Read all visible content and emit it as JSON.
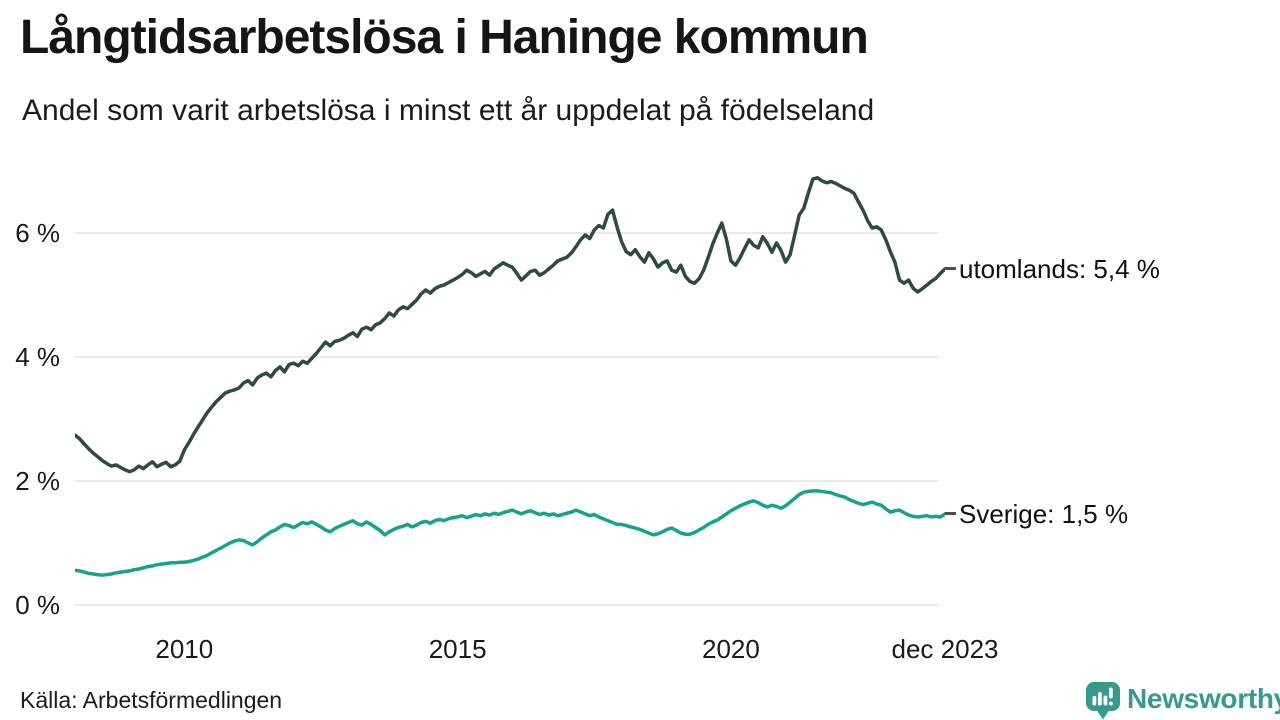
{
  "header": {
    "title": "Långtidsarbetslösa i Haninge kommun",
    "subtitle": "Andel som varit arbetslösa i minst ett år uppdelat på födelseland"
  },
  "footer": {
    "source": "Källa: Arbetsförmedlingen",
    "brand": "Newsworthy"
  },
  "colors": {
    "utomlands_line": "#2d4a44",
    "sverige_line": "#17a28e",
    "grid": "#e4e4e4",
    "label_dash": "#4d4d4d",
    "brand_teal": "#38998c",
    "text": "#1a1a1a"
  },
  "chart_data": {
    "type": "line",
    "title": "Långtidsarbetslösa i Haninge kommun",
    "subtitle": "Andel som varit arbetslösa i minst ett år uppdelat på födelseland",
    "unit": "%",
    "grid": true,
    "legend_position": "right-end-labels",
    "x_range": [
      2008.0,
      2023.9167
    ],
    "x_frequency": "monthly",
    "x_ticks": [
      {
        "year": 2010,
        "label": "2010"
      },
      {
        "year": 2015,
        "label": "2015"
      },
      {
        "year": 2020,
        "label": "2020"
      },
      {
        "year": 2023.9167,
        "label": "dec 2023"
      }
    ],
    "ylim": [
      0,
      7.2
    ],
    "y_ticks": [
      0,
      2,
      4,
      6
    ],
    "y_tick_suffix": " %",
    "series": [
      {
        "name": "utomlands",
        "label": "utomlands: 5,4 %",
        "last_value_label": "5,4 %",
        "color": "#2d4a44",
        "values": [
          2.74,
          2.68,
          2.6,
          2.52,
          2.45,
          2.39,
          2.33,
          2.28,
          2.24,
          2.26,
          2.22,
          2.18,
          2.15,
          2.18,
          2.24,
          2.2,
          2.26,
          2.31,
          2.23,
          2.27,
          2.3,
          2.23,
          2.26,
          2.32,
          2.5,
          2.62,
          2.75,
          2.87,
          2.98,
          3.1,
          3.19,
          3.28,
          3.35,
          3.42,
          3.45,
          3.47,
          3.5,
          3.58,
          3.62,
          3.55,
          3.66,
          3.71,
          3.74,
          3.68,
          3.78,
          3.84,
          3.76,
          3.88,
          3.9,
          3.86,
          3.93,
          3.9,
          3.98,
          4.06,
          4.15,
          4.24,
          4.18,
          4.25,
          4.27,
          4.3,
          4.35,
          4.39,
          4.33,
          4.45,
          4.48,
          4.44,
          4.52,
          4.55,
          4.62,
          4.71,
          4.66,
          4.76,
          4.81,
          4.78,
          4.85,
          4.92,
          5.02,
          5.08,
          5.03,
          5.1,
          5.14,
          5.16,
          5.2,
          5.24,
          5.28,
          5.33,
          5.4,
          5.36,
          5.3,
          5.34,
          5.38,
          5.32,
          5.42,
          5.47,
          5.52,
          5.48,
          5.45,
          5.35,
          5.24,
          5.31,
          5.38,
          5.4,
          5.32,
          5.36,
          5.42,
          5.48,
          5.55,
          5.58,
          5.61,
          5.68,
          5.78,
          5.89,
          5.97,
          5.91,
          6.05,
          6.12,
          6.08,
          6.3,
          6.37,
          6.1,
          5.86,
          5.7,
          5.65,
          5.73,
          5.62,
          5.53,
          5.68,
          5.58,
          5.45,
          5.52,
          5.55,
          5.4,
          5.37,
          5.48,
          5.3,
          5.22,
          5.19,
          5.26,
          5.4,
          5.6,
          5.82,
          6.0,
          6.16,
          5.9,
          5.55,
          5.48,
          5.6,
          5.75,
          5.89,
          5.8,
          5.76,
          5.94,
          5.83,
          5.69,
          5.84,
          5.72,
          5.53,
          5.65,
          5.97,
          6.29,
          6.4,
          6.65,
          6.87,
          6.89,
          6.84,
          6.81,
          6.83,
          6.8,
          6.76,
          6.72,
          6.69,
          6.64,
          6.5,
          6.37,
          6.2,
          6.08,
          6.1,
          6.05,
          5.89,
          5.7,
          5.53,
          5.24,
          5.19,
          5.24,
          5.11,
          5.05,
          5.1,
          5.16,
          5.22,
          5.27,
          5.35,
          5.42
        ]
      },
      {
        "name": "Sverige",
        "label": "Sverige: 1,5 %",
        "last_value_label": "1,5 %",
        "color": "#17a28e",
        "values": [
          0.56,
          0.55,
          0.53,
          0.51,
          0.5,
          0.49,
          0.48,
          0.49,
          0.5,
          0.52,
          0.53,
          0.54,
          0.55,
          0.57,
          0.58,
          0.6,
          0.62,
          0.63,
          0.65,
          0.66,
          0.67,
          0.68,
          0.68,
          0.69,
          0.69,
          0.7,
          0.72,
          0.74,
          0.77,
          0.8,
          0.84,
          0.88,
          0.92,
          0.96,
          1.0,
          1.03,
          1.05,
          1.04,
          1.0,
          0.97,
          1.02,
          1.08,
          1.13,
          1.18,
          1.21,
          1.26,
          1.3,
          1.28,
          1.25,
          1.29,
          1.33,
          1.31,
          1.34,
          1.3,
          1.26,
          1.21,
          1.18,
          1.23,
          1.27,
          1.3,
          1.33,
          1.36,
          1.31,
          1.29,
          1.34,
          1.3,
          1.25,
          1.2,
          1.13,
          1.18,
          1.22,
          1.25,
          1.27,
          1.3,
          1.26,
          1.29,
          1.33,
          1.35,
          1.32,
          1.36,
          1.38,
          1.36,
          1.39,
          1.41,
          1.42,
          1.44,
          1.41,
          1.43,
          1.46,
          1.44,
          1.47,
          1.45,
          1.48,
          1.46,
          1.49,
          1.51,
          1.53,
          1.5,
          1.47,
          1.5,
          1.52,
          1.49,
          1.46,
          1.48,
          1.45,
          1.47,
          1.44,
          1.46,
          1.48,
          1.5,
          1.53,
          1.5,
          1.47,
          1.44,
          1.46,
          1.42,
          1.39,
          1.36,
          1.33,
          1.3,
          1.3,
          1.28,
          1.26,
          1.24,
          1.22,
          1.19,
          1.16,
          1.13,
          1.15,
          1.18,
          1.22,
          1.24,
          1.2,
          1.16,
          1.14,
          1.14,
          1.17,
          1.21,
          1.25,
          1.3,
          1.34,
          1.37,
          1.42,
          1.47,
          1.52,
          1.56,
          1.6,
          1.63,
          1.66,
          1.68,
          1.65,
          1.61,
          1.58,
          1.61,
          1.59,
          1.56,
          1.6,
          1.66,
          1.72,
          1.78,
          1.82,
          1.83,
          1.84,
          1.84,
          1.83,
          1.82,
          1.81,
          1.78,
          1.76,
          1.74,
          1.7,
          1.67,
          1.64,
          1.62,
          1.64,
          1.66,
          1.63,
          1.61,
          1.55,
          1.5,
          1.52,
          1.53,
          1.49,
          1.45,
          1.43,
          1.42,
          1.43,
          1.44,
          1.42,
          1.43,
          1.42,
          1.47
        ]
      }
    ]
  }
}
